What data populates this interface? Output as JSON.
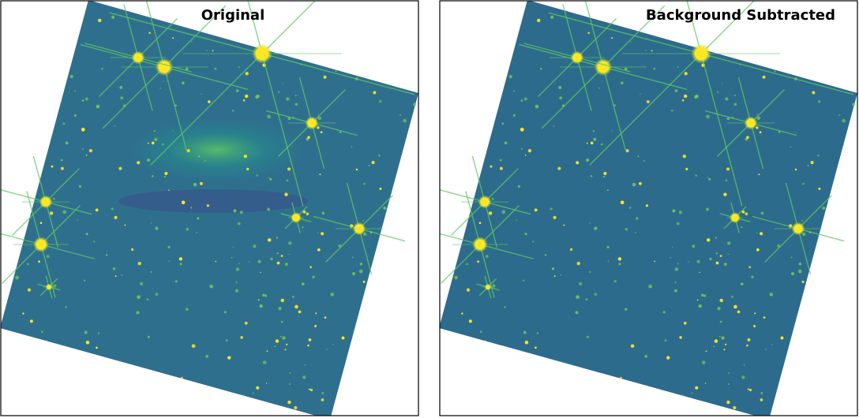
{
  "panels": [
    {
      "title": "Original"
    },
    {
      "title": "Background Subtracted"
    }
  ]
}
